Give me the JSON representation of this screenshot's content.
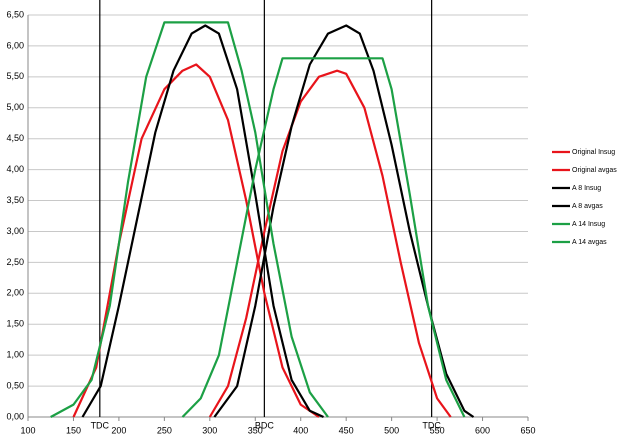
{
  "chart_data": {
    "type": "line",
    "xlim": [
      100,
      650
    ],
    "xticks": [
      100,
      150,
      200,
      250,
      300,
      350,
      400,
      450,
      500,
      550,
      600,
      650
    ],
    "ylim": [
      0,
      6.5
    ],
    "yticks": [
      {
        "value": 0,
        "label": "0,00"
      },
      {
        "value": 0.5,
        "label": "0,50"
      },
      {
        "value": 1,
        "label": "1,00"
      },
      {
        "value": 1.5,
        "label": "1,50"
      },
      {
        "value": 2,
        "label": "2,00"
      },
      {
        "value": 2.5,
        "label": "2,50"
      },
      {
        "value": 3,
        "label": "3,00"
      },
      {
        "value": 3.5,
        "label": "3,50"
      },
      {
        "value": 4,
        "label": "4,00"
      },
      {
        "value": 4.5,
        "label": "4,50"
      },
      {
        "value": 5,
        "label": "5,00"
      },
      {
        "value": 5.5,
        "label": "5,50"
      },
      {
        "value": 6,
        "label": "6,00"
      },
      {
        "value": 6.5,
        "label": "6,50"
      }
    ],
    "grid": true,
    "legend": "right",
    "markers": [
      {
        "x": 179,
        "label": "TDC"
      },
      {
        "x": 360,
        "label": "BDC"
      },
      {
        "x": 544,
        "label": "TDC"
      }
    ],
    "series": [
      {
        "name": "Original Insug",
        "color": "#e8141b",
        "x": [
          150,
          175,
          200,
          225,
          250,
          270,
          285,
          300,
          320,
          340,
          360,
          380,
          400,
          420
        ],
        "values": [
          0,
          0.8,
          2.8,
          4.5,
          5.3,
          5.6,
          5.7,
          5.5,
          4.8,
          3.5,
          2.0,
          0.8,
          0.2,
          0
        ]
      },
      {
        "name": "Original avgas",
        "color": "#e8141b",
        "x": [
          300,
          320,
          340,
          360,
          380,
          400,
          420,
          440,
          450,
          470,
          490,
          510,
          530,
          550,
          565
        ],
        "values": [
          0,
          0.5,
          1.6,
          3.0,
          4.3,
          5.1,
          5.5,
          5.6,
          5.55,
          5.0,
          3.9,
          2.5,
          1.2,
          0.3,
          0
        ]
      },
      {
        "name": "A 8 Insug",
        "color": "#000000",
        "x": [
          160,
          180,
          200,
          220,
          240,
          260,
          280,
          295,
          310,
          330,
          350,
          370,
          390,
          410,
          425
        ],
        "values": [
          0,
          0.5,
          1.8,
          3.2,
          4.6,
          5.6,
          6.2,
          6.33,
          6.2,
          5.3,
          3.6,
          1.8,
          0.6,
          0.1,
          0
        ]
      },
      {
        "name": "A 8 avgas",
        "color": "#000000",
        "x": [
          305,
          330,
          350,
          370,
          390,
          410,
          430,
          450,
          465,
          480,
          500,
          520,
          540,
          560,
          580,
          590
        ],
        "values": [
          0,
          0.5,
          1.8,
          3.4,
          4.7,
          5.7,
          6.2,
          6.33,
          6.2,
          5.6,
          4.4,
          3.0,
          1.8,
          0.7,
          0.1,
          0
        ]
      },
      {
        "name": "A 14 Insug",
        "color": "#1ca045",
        "x": [
          125,
          150,
          170,
          190,
          210,
          230,
          250,
          320,
          335,
          350,
          370,
          390,
          410,
          430
        ],
        "values": [
          0,
          0.2,
          0.6,
          1.8,
          3.8,
          5.5,
          6.38,
          6.38,
          5.6,
          4.6,
          2.8,
          1.3,
          0.4,
          0
        ]
      },
      {
        "name": "A 14 avgas",
        "color": "#1ca045",
        "x": [
          270,
          290,
          310,
          330,
          350,
          370,
          380,
          490,
          500,
          520,
          540,
          560,
          580
        ],
        "values": [
          0,
          0.3,
          1.0,
          2.5,
          4.0,
          5.3,
          5.8,
          5.8,
          5.3,
          3.6,
          1.8,
          0.6,
          0
        ]
      }
    ]
  }
}
